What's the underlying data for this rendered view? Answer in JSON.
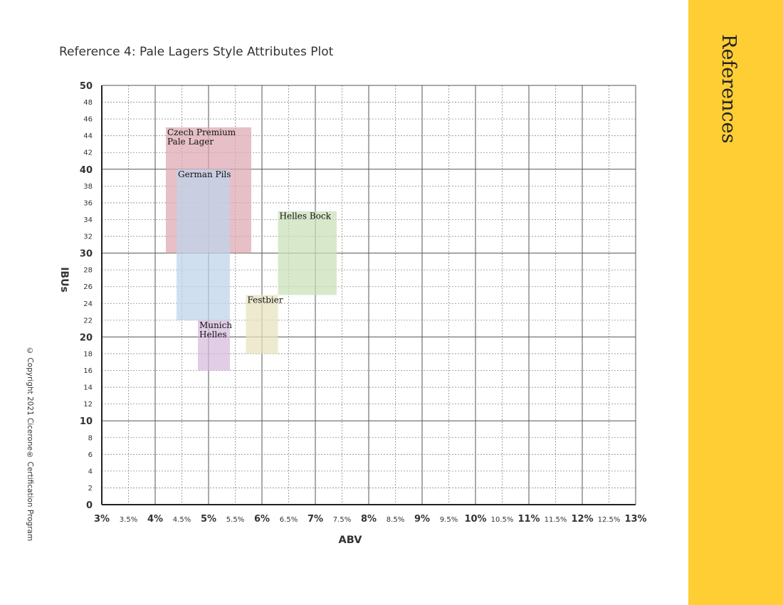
{
  "title": "Reference 4: Pale Lagers Style Attributes Plot",
  "sidebar": {
    "label": "References"
  },
  "copyright": "© Copyright 2021 Cicerone® Certification Program",
  "colors": {
    "sidebar": "#ffcd34",
    "czech": "#dca7b0",
    "german": "#bed3ea",
    "helles_bock": "#c9e0b7",
    "festbier": "#e6e2bd",
    "munich": "#d6badd"
  },
  "chart_data": {
    "type": "range",
    "title": "Reference 4: Pale Lagers Style Attributes Plot",
    "xlabel": "ABV",
    "ylabel": "IBUs",
    "xlim": [
      3,
      13
    ],
    "ylim": [
      0,
      50
    ],
    "grid": true,
    "x_ticks": [
      {
        "value": 3,
        "label": "3%",
        "major": true
      },
      {
        "value": 3.5,
        "label": "3.5%",
        "major": false
      },
      {
        "value": 4,
        "label": "4%",
        "major": true
      },
      {
        "value": 4.5,
        "label": "4.5%",
        "major": false
      },
      {
        "value": 5,
        "label": "5%",
        "major": true
      },
      {
        "value": 5.5,
        "label": "5.5%",
        "major": false
      },
      {
        "value": 6,
        "label": "6%",
        "major": true
      },
      {
        "value": 6.5,
        "label": "6.5%",
        "major": false
      },
      {
        "value": 7,
        "label": "7%",
        "major": true
      },
      {
        "value": 7.5,
        "label": "7.5%",
        "major": false
      },
      {
        "value": 8,
        "label": "8%",
        "major": true
      },
      {
        "value": 8.5,
        "label": "8.5%",
        "major": false
      },
      {
        "value": 9,
        "label": "9%",
        "major": true
      },
      {
        "value": 9.5,
        "label": "9.5%",
        "major": false
      },
      {
        "value": 10,
        "label": "10%",
        "major": true
      },
      {
        "value": 10.5,
        "label": "10.5%",
        "major": false
      },
      {
        "value": 11,
        "label": "11%",
        "major": true
      },
      {
        "value": 11.5,
        "label": "11.5%",
        "major": false
      },
      {
        "value": 12,
        "label": "12%",
        "major": true
      },
      {
        "value": 12.5,
        "label": "12.5%",
        "major": false
      },
      {
        "value": 13,
        "label": "13%",
        "major": true
      }
    ],
    "y_ticks": [
      {
        "value": 0,
        "label": "0",
        "major": true
      },
      {
        "value": 2,
        "label": "2",
        "major": false
      },
      {
        "value": 4,
        "label": "4",
        "major": false
      },
      {
        "value": 6,
        "label": "6",
        "major": false
      },
      {
        "value": 8,
        "label": "8",
        "major": false
      },
      {
        "value": 10,
        "label": "10",
        "major": true
      },
      {
        "value": 12,
        "label": "12",
        "major": false
      },
      {
        "value": 14,
        "label": "14",
        "major": false
      },
      {
        "value": 16,
        "label": "16",
        "major": false
      },
      {
        "value": 18,
        "label": "18",
        "major": false
      },
      {
        "value": 20,
        "label": "20",
        "major": true
      },
      {
        "value": 22,
        "label": "22",
        "major": false
      },
      {
        "value": 24,
        "label": "24",
        "major": false
      },
      {
        "value": 26,
        "label": "26",
        "major": false
      },
      {
        "value": 28,
        "label": "28",
        "major": false
      },
      {
        "value": 30,
        "label": "30",
        "major": true
      },
      {
        "value": 32,
        "label": "32",
        "major": false
      },
      {
        "value": 34,
        "label": "34",
        "major": false
      },
      {
        "value": 36,
        "label": "36",
        "major": false
      },
      {
        "value": 38,
        "label": "38",
        "major": false
      },
      {
        "value": 40,
        "label": "40",
        "major": true
      },
      {
        "value": 42,
        "label": "42",
        "major": false
      },
      {
        "value": 44,
        "label": "44",
        "major": false
      },
      {
        "value": 46,
        "label": "46",
        "major": false
      },
      {
        "value": 48,
        "label": "48",
        "major": false
      },
      {
        "value": 50,
        "label": "50",
        "major": true
      }
    ],
    "series": [
      {
        "name": "Czech Premium Pale Lager",
        "label_lines": [
          "Czech Premium",
          "Pale Lager"
        ],
        "abv": [
          4.2,
          5.8
        ],
        "ibu": [
          30,
          45
        ],
        "color": "#dca7b0"
      },
      {
        "name": "German Pils",
        "label_lines": [
          "German Pils"
        ],
        "abv": [
          4.4,
          5.4
        ],
        "ibu": [
          22,
          40
        ],
        "color": "#bed3ea"
      },
      {
        "name": "Helles Bock",
        "label_lines": [
          "Helles Bock"
        ],
        "abv": [
          6.3,
          7.4
        ],
        "ibu": [
          25,
          35
        ],
        "color": "#c9e0b7"
      },
      {
        "name": "Festbier",
        "label_lines": [
          "Festbier"
        ],
        "abv": [
          5.7,
          6.3
        ],
        "ibu": [
          18,
          25
        ],
        "color": "#e6e2bd"
      },
      {
        "name": "Munich Helles",
        "label_lines": [
          "Munich",
          "Helles"
        ],
        "abv": [
          4.8,
          5.4
        ],
        "ibu": [
          16,
          22
        ],
        "color": "#d6badd"
      }
    ]
  }
}
